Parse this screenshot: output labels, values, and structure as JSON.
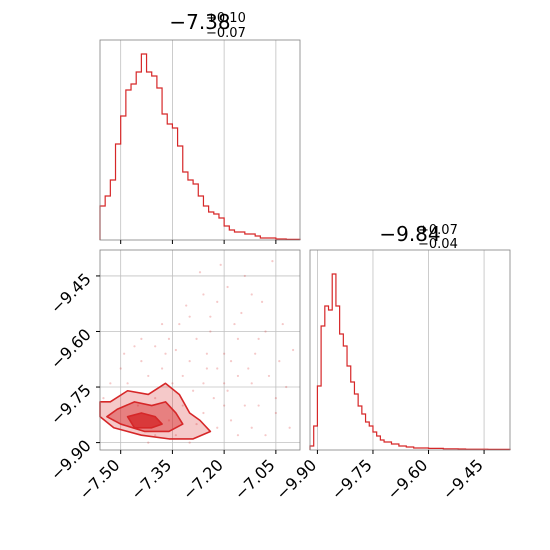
{
  "colors": {
    "series": "#d62728",
    "grid": "#c0c0c0",
    "frame": "#808080"
  },
  "chart_data": [
    {
      "type": "histogram",
      "title": {
        "median": "−7.38",
        "upper": "+0.10",
        "lower": "−0.07"
      },
      "xlim": [
        -7.56,
        -6.98
      ],
      "x_ticks": [
        -7.5,
        -7.35,
        -7.2,
        -7.05
      ],
      "x_tick_labels": [
        "−7.50",
        "−7.35",
        "−7.20",
        "−7.05"
      ],
      "grid": true,
      "bins": [
        [
          -7.56,
          0.17
        ],
        [
          -7.545,
          0.22
        ],
        [
          -7.53,
          0.3
        ],
        [
          -7.515,
          0.48
        ],
        [
          -7.5,
          0.62
        ],
        [
          -7.485,
          0.75
        ],
        [
          -7.47,
          0.78
        ],
        [
          -7.455,
          0.84
        ],
        [
          -7.44,
          0.93
        ],
        [
          -7.425,
          0.84
        ],
        [
          -7.41,
          0.82
        ],
        [
          -7.395,
          0.76
        ],
        [
          -7.38,
          0.63
        ],
        [
          -7.365,
          0.58
        ],
        [
          -7.35,
          0.56
        ],
        [
          -7.335,
          0.47
        ],
        [
          -7.32,
          0.34
        ],
        [
          -7.305,
          0.3
        ],
        [
          -7.29,
          0.28
        ],
        [
          -7.275,
          0.22
        ],
        [
          -7.26,
          0.17
        ],
        [
          -7.245,
          0.14
        ],
        [
          -7.23,
          0.13
        ],
        [
          -7.215,
          0.11
        ],
        [
          -7.2,
          0.07
        ],
        [
          -7.185,
          0.05
        ],
        [
          -7.17,
          0.04
        ],
        [
          -7.155,
          0.04
        ],
        [
          -7.14,
          0.03
        ],
        [
          -7.125,
          0.03
        ],
        [
          -7.11,
          0.02
        ],
        [
          -7.095,
          0.01
        ],
        [
          -7.08,
          0.01
        ],
        [
          -7.065,
          0.01
        ],
        [
          -7.05,
          0.005
        ],
        [
          -7.035,
          0.005
        ],
        [
          -7.02,
          0.003
        ],
        [
          -7.005,
          0.003
        ],
        [
          -6.99,
          0.003
        ]
      ]
    },
    {
      "type": "scatter",
      "xlim": [
        -7.56,
        -6.98
      ],
      "ylim": [
        -9.92,
        -9.38
      ],
      "x_ticks": [
        -7.5,
        -7.35,
        -7.2,
        -7.05
      ],
      "x_tick_labels": [
        "−7.50",
        "−7.35",
        "−7.20",
        "−7.05"
      ],
      "y_ticks": [
        -9.45,
        -9.6,
        -9.75,
        -9.9
      ],
      "y_tick_labels": [
        "−9.45",
        "−9.60",
        "−9.75",
        "−9.90"
      ],
      "grid": true,
      "contours": [
        [
          [
            -7.53,
            -9.79
          ],
          [
            -7.48,
            -9.76
          ],
          [
            -7.42,
            -9.77
          ],
          [
            -7.37,
            -9.74
          ],
          [
            -7.33,
            -9.77
          ],
          [
            -7.3,
            -9.82
          ],
          [
            -7.27,
            -9.84
          ],
          [
            -7.24,
            -9.87
          ],
          [
            -7.29,
            -9.89
          ],
          [
            -7.36,
            -9.89
          ],
          [
            -7.44,
            -9.88
          ],
          [
            -7.52,
            -9.86
          ],
          [
            -7.56,
            -9.83
          ],
          [
            -7.56,
            -9.79
          ]
        ],
        [
          [
            -7.51,
            -9.81
          ],
          [
            -7.46,
            -9.79
          ],
          [
            -7.41,
            -9.8
          ],
          [
            -7.37,
            -9.79
          ],
          [
            -7.34,
            -9.82
          ],
          [
            -7.32,
            -9.85
          ],
          [
            -7.36,
            -9.87
          ],
          [
            -7.43,
            -9.87
          ],
          [
            -7.5,
            -9.85
          ],
          [
            -7.54,
            -9.83
          ]
        ],
        [
          [
            -7.48,
            -9.83
          ],
          [
            -7.44,
            -9.82
          ],
          [
            -7.4,
            -9.83
          ],
          [
            -7.38,
            -9.85
          ],
          [
            -7.41,
            -9.86
          ],
          [
            -7.46,
            -9.86
          ]
        ]
      ],
      "points": [
        [
          -7.45,
          -9.8
        ],
        [
          -7.4,
          -9.78
        ],
        [
          -7.36,
          -9.84
        ],
        [
          -7.32,
          -9.8
        ],
        [
          -7.29,
          -9.76
        ],
        [
          -7.26,
          -9.82
        ],
        [
          -7.23,
          -9.78
        ],
        [
          -7.2,
          -9.74
        ],
        [
          -7.22,
          -9.86
        ],
        [
          -7.25,
          -9.7
        ],
        [
          -7.3,
          -9.68
        ],
        [
          -7.34,
          -9.65
        ],
        [
          -7.38,
          -9.7
        ],
        [
          -7.42,
          -9.72
        ],
        [
          -7.48,
          -9.74
        ],
        [
          -7.5,
          -9.7
        ],
        [
          -7.28,
          -9.62
        ],
        [
          -7.24,
          -9.6
        ],
        [
          -7.2,
          -9.66
        ],
        [
          -7.16,
          -9.72
        ],
        [
          -7.14,
          -9.8
        ],
        [
          -7.12,
          -9.86
        ],
        [
          -7.18,
          -9.84
        ],
        [
          -7.1,
          -9.62
        ],
        [
          -7.15,
          -9.55
        ],
        [
          -7.22,
          -9.52
        ],
        [
          -7.26,
          -9.5
        ],
        [
          -7.19,
          -9.48
        ],
        [
          -7.12,
          -9.5
        ],
        [
          -7.08,
          -9.6
        ],
        [
          -7.04,
          -9.68
        ],
        [
          -7.02,
          -9.75
        ],
        [
          -7.05,
          -9.82
        ],
        [
          -7.08,
          -9.88
        ],
        [
          -7.3,
          -9.56
        ],
        [
          -7.33,
          -9.58
        ],
        [
          -7.36,
          -9.62
        ],
        [
          -7.4,
          -9.64
        ],
        [
          -7.44,
          -9.68
        ],
        [
          -7.46,
          -9.64
        ],
        [
          -7.27,
          -9.44
        ],
        [
          -7.21,
          -9.42
        ],
        [
          -7.14,
          -9.45
        ],
        [
          -7.09,
          -9.52
        ],
        [
          -7.03,
          -9.58
        ],
        [
          -7.0,
          -9.65
        ],
        [
          -7.06,
          -9.41
        ],
        [
          -7.32,
          -9.72
        ],
        [
          -7.18,
          -9.68
        ],
        [
          -7.12,
          -9.74
        ],
        [
          -7.16,
          -9.62
        ],
        [
          -7.25,
          -9.66
        ],
        [
          -7.35,
          -9.74
        ],
        [
          -7.22,
          -9.7
        ],
        [
          -7.1,
          -9.8
        ],
        [
          -7.07,
          -9.72
        ],
        [
          -7.28,
          -9.85
        ],
        [
          -7.34,
          -9.88
        ],
        [
          -7.4,
          -9.88
        ],
        [
          -7.46,
          -9.86
        ],
        [
          -7.52,
          -9.84
        ],
        [
          -7.55,
          -9.78
        ],
        [
          -7.53,
          -9.74
        ],
        [
          -7.49,
          -9.66
        ],
        [
          -7.44,
          -9.62
        ],
        [
          -7.38,
          -9.58
        ],
        [
          -7.31,
          -9.53
        ],
        [
          -7.24,
          -9.56
        ],
        [
          -7.17,
          -9.58
        ],
        [
          -7.11,
          -9.66
        ],
        [
          -7.05,
          -9.78
        ],
        [
          -7.01,
          -9.86
        ],
        [
          -7.2,
          -9.8
        ],
        [
          -7.16,
          -9.88
        ],
        [
          -7.26,
          -9.74
        ],
        [
          -7.3,
          -9.9
        ],
        [
          -7.42,
          -9.9
        ],
        [
          -7.37,
          -9.66
        ],
        [
          -7.13,
          -9.7
        ],
        [
          -7.19,
          -9.76
        ]
      ]
    },
    {
      "type": "histogram",
      "title": {
        "median": "−9.84",
        "upper": "+0.07",
        "lower": "−0.04"
      },
      "xlim": [
        -9.92,
        -9.38
      ],
      "x_ticks": [
        -9.9,
        -9.75,
        -9.6,
        -9.45
      ],
      "x_tick_labels": [
        "−9.90",
        "−9.75",
        "−9.60",
        "−9.45"
      ],
      "grid": true,
      "bins": [
        [
          -9.92,
          0.02
        ],
        [
          -9.91,
          0.12
        ],
        [
          -9.9,
          0.32
        ],
        [
          -9.89,
          0.62
        ],
        [
          -9.88,
          0.72
        ],
        [
          -9.87,
          0.7
        ],
        [
          -9.86,
          0.88
        ],
        [
          -9.85,
          0.72
        ],
        [
          -9.84,
          0.58
        ],
        [
          -9.83,
          0.52
        ],
        [
          -9.82,
          0.42
        ],
        [
          -9.81,
          0.34
        ],
        [
          -9.8,
          0.28
        ],
        [
          -9.79,
          0.22
        ],
        [
          -9.78,
          0.18
        ],
        [
          -9.77,
          0.14
        ],
        [
          -9.76,
          0.12
        ],
        [
          -9.75,
          0.09
        ],
        [
          -9.74,
          0.07
        ],
        [
          -9.73,
          0.05
        ],
        [
          -9.72,
          0.04
        ],
        [
          -9.71,
          0.04
        ],
        [
          -9.7,
          0.03
        ],
        [
          -9.69,
          0.03
        ],
        [
          -9.68,
          0.02
        ],
        [
          -9.67,
          0.02
        ],
        [
          -9.66,
          0.015
        ],
        [
          -9.65,
          0.015
        ],
        [
          -9.64,
          0.01
        ],
        [
          -9.62,
          0.01
        ],
        [
          -9.6,
          0.008
        ],
        [
          -9.58,
          0.008
        ],
        [
          -9.56,
          0.006
        ],
        [
          -9.54,
          0.006
        ],
        [
          -9.52,
          0.005
        ],
        [
          -9.5,
          0.004
        ],
        [
          -9.48,
          0.004
        ],
        [
          -9.46,
          0.004
        ],
        [
          -9.44,
          0.003
        ],
        [
          -9.42,
          0.003
        ],
        [
          -9.4,
          0.003
        ]
      ]
    }
  ]
}
